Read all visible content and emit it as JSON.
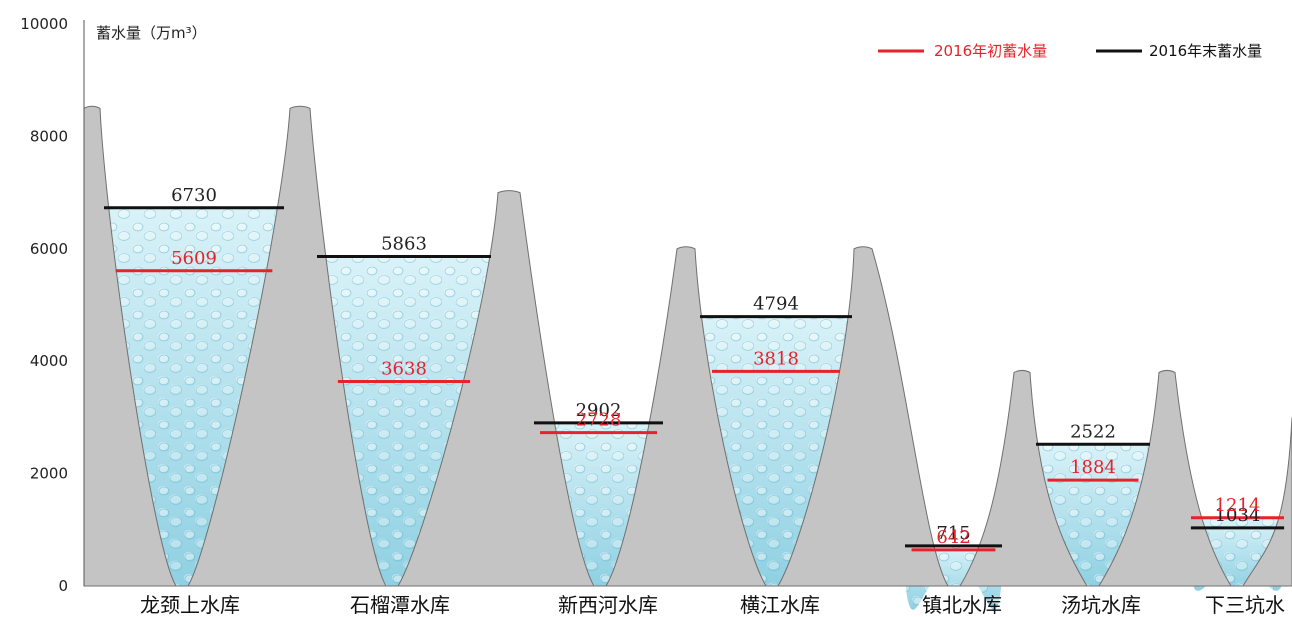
{
  "chart_data": {
    "type": "bar",
    "ylabel": "蓄水量（万m³）",
    "ylim": [
      0,
      10000
    ],
    "yticks": [
      0,
      2000,
      4000,
      6000,
      8000,
      10000
    ],
    "categories": [
      "龙颈上水库",
      "石榴潭水库",
      "新西河水库",
      "横江水库",
      "镇北水库",
      "汤坑水库",
      "下三坑水"
    ],
    "series": [
      {
        "name": "2016年初蓄水量",
        "color": "#e8222a",
        "values": [
          5609,
          3638,
          2728,
          3818,
          642,
          1884,
          1214
        ]
      },
      {
        "name": "2016年末蓄水量",
        "color": "#111111",
        "values": [
          6730,
          5863,
          2902,
          4794,
          715,
          2522,
          1034
        ]
      }
    ],
    "legend_position": "top-right",
    "grid": false
  },
  "colors": {
    "mountain": "#c4c4c4",
    "mountain_edge": "#707070",
    "water_light": "#d9f2f8",
    "water_dark": "#8fd0e2",
    "begin_line": "#e8222a",
    "end_line": "#111111"
  }
}
